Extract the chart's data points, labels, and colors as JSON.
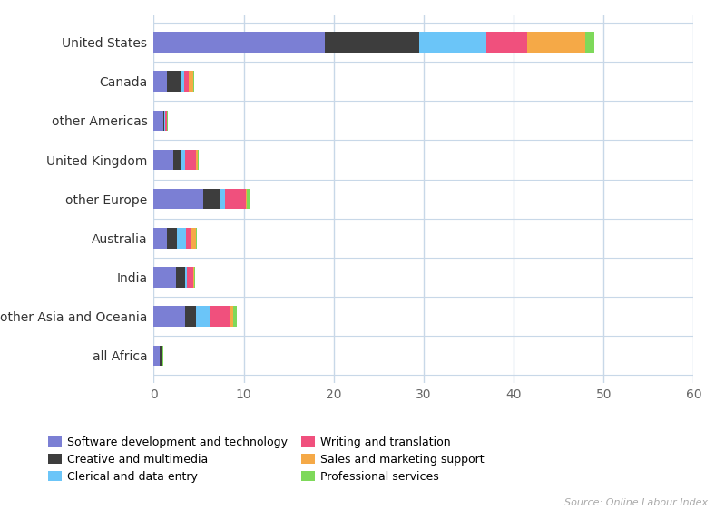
{
  "categories": [
    "United States",
    "Canada",
    "other Americas",
    "United Kingdom",
    "other Europe",
    "Australia",
    "India",
    "other Asia and Oceania",
    "all Africa"
  ],
  "series_order": [
    "Software development and technology",
    "Creative and multimedia",
    "Clerical and data entry",
    "Writing and translation",
    "Sales and marketing support",
    "Professional services"
  ],
  "series": {
    "Software development and technology": [
      19.0,
      1.5,
      1.1,
      2.2,
      5.5,
      1.5,
      2.5,
      3.5,
      0.7
    ],
    "Creative and multimedia": [
      10.5,
      1.5,
      0.1,
      0.8,
      1.8,
      1.1,
      1.0,
      1.2,
      0.15
    ],
    "Clerical and data entry": [
      7.5,
      0.4,
      0.05,
      0.5,
      0.6,
      1.0,
      0.2,
      1.5,
      0.05
    ],
    "Writing and translation": [
      4.5,
      0.5,
      0.2,
      1.2,
      2.3,
      0.6,
      0.7,
      2.2,
      0.05
    ],
    "Sales and marketing support": [
      6.5,
      0.5,
      0.05,
      0.2,
      0.1,
      0.5,
      0.1,
      0.4,
      0.05
    ],
    "Professional services": [
      1.0,
      0.1,
      0.05,
      0.05,
      0.4,
      0.05,
      0.05,
      0.4,
      0.05
    ]
  },
  "colors": {
    "Software development and technology": "#7b7fd4",
    "Creative and multimedia": "#3d3d3d",
    "Clerical and data entry": "#6bc5f8",
    "Writing and translation": "#f0507d",
    "Sales and marketing support": "#f5a947",
    "Professional services": "#7ed95a"
  },
  "xlim": [
    0,
    60
  ],
  "xticks": [
    0,
    10,
    20,
    30,
    40,
    50,
    60
  ],
  "background_color": "#ffffff",
  "grid_color": "#c8d8e8",
  "source_text": "Source: Online Labour Index",
  "bar_height": 0.52,
  "figsize": [
    7.88,
    5.62
  ],
  "dpi": 100,
  "legend_order": [
    [
      "Software development and technology",
      "Creative and multimedia"
    ],
    [
      "Clerical and data entry",
      "Writing and translation",
      "Sales and marketing support"
    ],
    [
      "Professional services"
    ]
  ]
}
